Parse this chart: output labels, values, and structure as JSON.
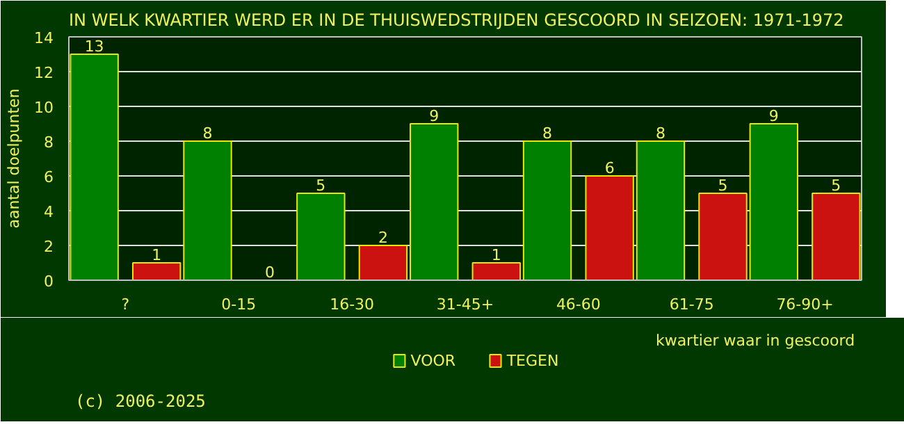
{
  "chart_data": {
    "type": "bar",
    "title": "IN WELK KWARTIER WERD ER IN DE THUISWEDSTRIJDEN GESCOORD IN SEIZOEN: 1971-1972",
    "ylabel": "aantal doelpunten",
    "xlabel": "kwartier waar in gescoord",
    "categories": [
      "?",
      "0-15",
      "16-30",
      "31-45+",
      "46-60",
      "61-75",
      "76-90+"
    ],
    "series": [
      {
        "name": "VOOR",
        "color": "#008000",
        "values": [
          13,
          8,
          5,
          9,
          8,
          8,
          9
        ]
      },
      {
        "name": "TEGEN",
        "color": "#cc1111",
        "values": [
          1,
          0,
          2,
          1,
          6,
          5,
          5
        ]
      }
    ],
    "ylim": [
      0,
      14
    ],
    "yticks": [
      0,
      2,
      4,
      6,
      8,
      10,
      12,
      14
    ],
    "grid": "y",
    "legend": "bottom",
    "data_labels": true,
    "annotations": [
      "(c) 2006-2025"
    ]
  }
}
